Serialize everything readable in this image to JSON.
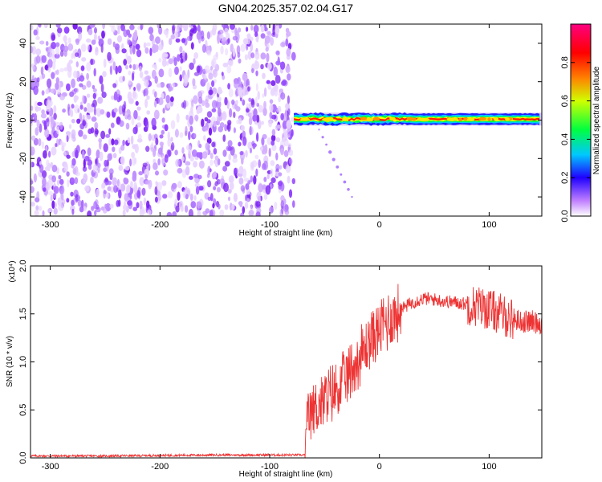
{
  "figure_title": "GN04.2025.357.02.04.G17",
  "chart_data": [
    {
      "type": "heatmap",
      "xlabel": "Height of straight line (km)",
      "ylabel": "Frequency (Hz)",
      "xlim": [
        -318,
        148
      ],
      "ylim": [
        -50,
        50
      ],
      "x_ticks": [
        -300,
        -200,
        -100,
        0,
        100
      ],
      "y_ticks": [
        40,
        20,
        0,
        -20,
        -40
      ],
      "colorbar": {
        "label": "Normalized spectral amplitude",
        "range": [
          0,
          1
        ],
        "ticks": [
          0.0,
          0.2,
          0.4,
          0.6,
          0.8
        ],
        "tick_labels": [
          "0.0",
          "0.2",
          "0.4",
          "0.6",
          "0.8"
        ],
        "colormap": [
          "#ffffff",
          "#8800ff",
          "#0000ff",
          "#00c8ff",
          "#00ff00",
          "#ffff00",
          "#ff8000",
          "#ff0000",
          "#ff0080"
        ]
      },
      "noise_region": {
        "x": [
          -318,
          -78
        ],
        "freq": [
          -50,
          50
        ],
        "amplitude": [
          0.0,
          0.3
        ]
      },
      "signal_band": {
        "x": [
          -78,
          148
        ],
        "frequency": 0.5,
        "peak_amplitude": 1.0
      },
      "scatter_tail": {
        "x": [
          -55,
          -25
        ],
        "frequency": [
          -5,
          -40
        ]
      }
    },
    {
      "type": "line",
      "xlabel": "Height of straight line (km)",
      "ylabel": "SNR (10 * v/v)",
      "scale_label": "(x10⁴)",
      "xlim": [
        -318,
        148
      ],
      "ylim": [
        0,
        2.0
      ],
      "x_ticks": [
        -300,
        -200,
        -100,
        0,
        100
      ],
      "y_ticks": [
        0.0,
        0.5,
        1.0,
        1.5,
        2.0
      ],
      "y_tick_labels": [
        "0.0",
        "0.5",
        "1.0",
        "1.5",
        "2.0"
      ],
      "color": "#ee3333",
      "series": [
        {
          "x": [
            -318,
            -250,
            -150,
            -100,
            -68,
            -65,
            -60,
            -50,
            -40,
            -30,
            -20,
            -10,
            0,
            10,
            20,
            30,
            40,
            50,
            60,
            70,
            80,
            90,
            100,
            110,
            120,
            130,
            140,
            148
          ],
          "y": [
            0.02,
            0.02,
            0.03,
            0.03,
            0.03,
            0.4,
            0.5,
            0.6,
            0.7,
            0.85,
            1.0,
            1.2,
            1.35,
            1.45,
            1.55,
            1.62,
            1.66,
            1.65,
            1.63,
            1.62,
            1.6,
            1.58,
            1.55,
            1.5,
            1.45,
            1.42,
            1.42,
            1.4
          ]
        }
      ]
    }
  ]
}
